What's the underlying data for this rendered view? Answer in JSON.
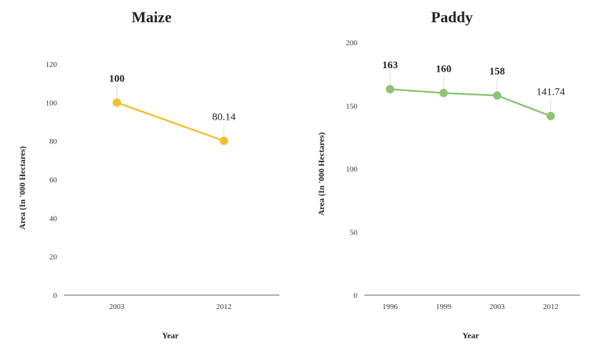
{
  "chart_data": [
    {
      "type": "line",
      "title": "Maize",
      "xlabel": "Year",
      "ylabel": "Area (In '000 Hectares)",
      "categories": [
        "2003",
        "2012"
      ],
      "values": [
        100,
        80.14
      ],
      "data_labels": [
        "100",
        "80.14"
      ],
      "ylim": [
        0,
        120
      ],
      "yticks": [
        "0",
        "20",
        "40",
        "60",
        "80",
        "100",
        "120"
      ],
      "grid": false,
      "color": "#f0c030"
    },
    {
      "type": "line",
      "title": "Paddy",
      "xlabel": "Year",
      "ylabel": "Area (In '000 Hectares)",
      "categories": [
        "1996",
        "1999",
        "2003",
        "2012"
      ],
      "values": [
        163,
        160,
        158,
        141.74
      ],
      "data_labels": [
        "163",
        "160",
        "158",
        "141.74"
      ],
      "ylim": [
        0,
        200
      ],
      "yticks": [
        "0",
        "50",
        "100",
        "150",
        "200"
      ],
      "grid": false,
      "color": "#8cc474"
    }
  ]
}
